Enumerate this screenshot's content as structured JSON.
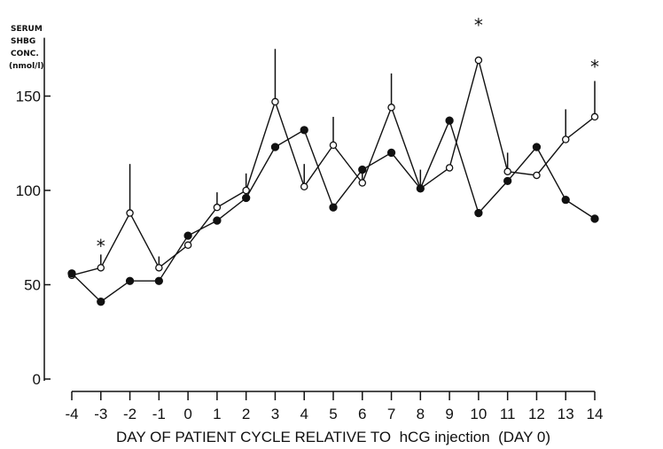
{
  "chart_data": {
    "type": "line",
    "title": "",
    "ylabel_lines": [
      "SERUM",
      "SHBG",
      "CONC.",
      "(nmol/l)"
    ],
    "xlabel": "DAY OF PATIENT CYCLE RELATIVE TO  hCG injection  (DAY 0)",
    "x": [
      -4,
      -3,
      -2,
      -1,
      0,
      1,
      2,
      3,
      4,
      5,
      6,
      7,
      8,
      9,
      10,
      11,
      12,
      13,
      14
    ],
    "x_tick_labels": [
      "-4",
      "-3",
      "-2",
      "-1",
      "0",
      "1",
      "2",
      "3",
      "4",
      "5",
      "6",
      "7",
      "8",
      "9",
      "10",
      "11",
      "12",
      "13",
      "14"
    ],
    "y_tick_values": [
      0,
      50,
      100,
      150
    ],
    "y_tick_labels": [
      "0",
      "50",
      "100",
      "150"
    ],
    "xlim": [
      -4,
      14
    ],
    "ylim": [
      0,
      180
    ],
    "grid": false,
    "series": [
      {
        "marker": "open-circle",
        "values": [
          55,
          59,
          88,
          59,
          71,
          91,
          100,
          147,
          102,
          124,
          104,
          144,
          101,
          112,
          169,
          110,
          108,
          127,
          139
        ],
        "errors": [
          0,
          7,
          26,
          6,
          0,
          8,
          9,
          28,
          12,
          15,
          8,
          18,
          10,
          0,
          0,
          10,
          0,
          16,
          19
        ]
      },
      {
        "marker": "filled-circle",
        "values": [
          56,
          41,
          52,
          52,
          76,
          84,
          96,
          123,
          132,
          91,
          111,
          120,
          101,
          137,
          88,
          105,
          123,
          95,
          85
        ]
      }
    ],
    "significance_markers": [
      {
        "x": -3,
        "y": 71,
        "text": "*"
      },
      {
        "x": 10,
        "y": 188,
        "text": "*"
      },
      {
        "x": 14,
        "y": 166,
        "text": "*"
      }
    ]
  }
}
